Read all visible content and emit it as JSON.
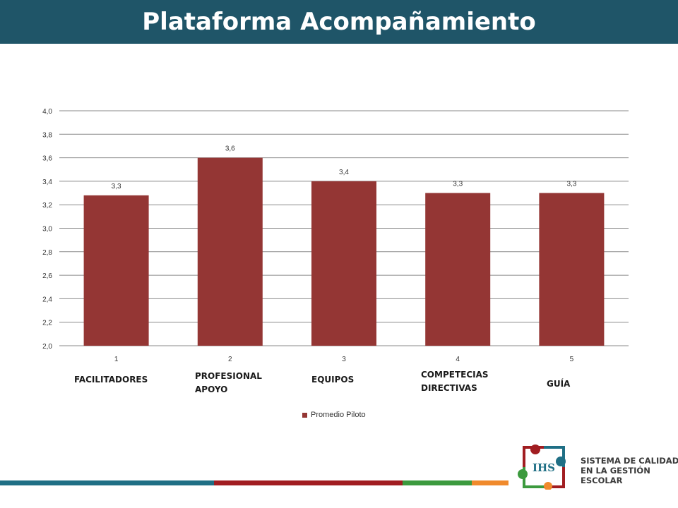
{
  "header": {
    "title": "Plataforma Acompañamiento"
  },
  "colors": {
    "header_bg": "#1f5568",
    "bar": "#943634",
    "grid": "#8a8a8a",
    "footer_stripes": [
      "#1f6f85",
      "#a11d21",
      "#3c9a3e",
      "#f08a2c"
    ]
  },
  "chart_data": {
    "type": "bar",
    "categories": [
      "1",
      "2",
      "3",
      "4",
      "5"
    ],
    "series": [
      {
        "name": "Promedio Piloto",
        "values": [
          3.28,
          3.6,
          3.4,
          3.3,
          3.3
        ],
        "labels": [
          "3,3",
          "3,6",
          "3,4",
          "3,3",
          "3,3"
        ]
      }
    ],
    "category_names": [
      "FACILITADORES",
      "PROFESIONAL\nAPOYO",
      "EQUIPOS",
      "COMPETECIAS\nDIRECTIVAS",
      "GUÍA"
    ],
    "ylim": [
      2.0,
      4.0
    ],
    "yticks": [
      "2,0",
      "2,2",
      "2,4",
      "2,6",
      "2,8",
      "3,0",
      "3,2",
      "3,4",
      "3,6",
      "3,8",
      "4,0"
    ],
    "grid": true,
    "legend_position": "bottom"
  },
  "logo": {
    "lines": [
      "SISTEMA DE CALIDAD",
      "EN LA GESTIÓN",
      "ESCOLAR"
    ],
    "monogram": "IHS",
    "colors": [
      "#a11d21",
      "#1f6f85",
      "#3c9a3e",
      "#f08a2c"
    ]
  }
}
